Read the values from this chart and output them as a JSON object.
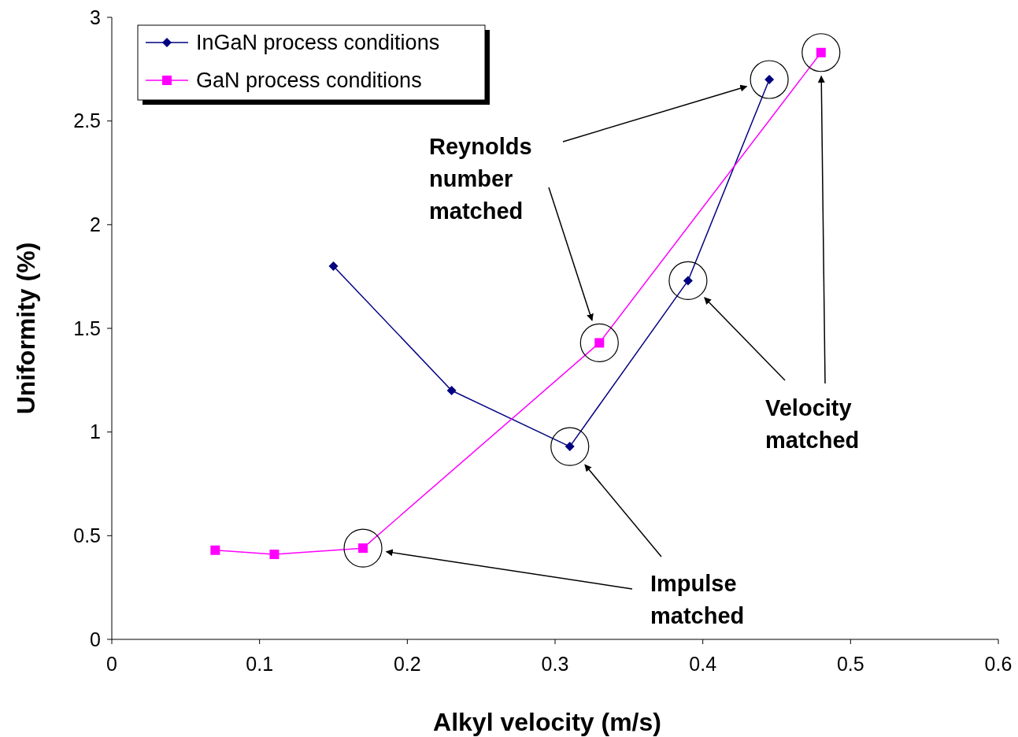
{
  "chart_data": {
    "type": "line",
    "xlabel": "Alkyl velocity (m/s)",
    "ylabel": "Uniformity (%)",
    "xlim": [
      0,
      0.6
    ],
    "xticks": [
      0,
      0.1,
      0.2,
      0.3,
      0.4,
      0.5,
      0.6
    ],
    "ylim": [
      0,
      3
    ],
    "yticks": [
      0,
      0.5,
      1,
      1.5,
      2,
      2.5,
      3
    ],
    "grid": false,
    "legend": "top left",
    "line_style": "solid",
    "series": [
      {
        "name": "InGaN process conditions",
        "color": "#000080",
        "marker": "diamond",
        "x": [
          0.15,
          0.23,
          0.31,
          0.39,
          0.445
        ],
        "values": [
          1.8,
          1.2,
          0.93,
          1.73,
          2.7
        ]
      },
      {
        "name": "GaN process conditions",
        "color": "#ff00ff",
        "marker": "square",
        "x": [
          0.07,
          0.11,
          0.17,
          0.33,
          0.48
        ],
        "values": [
          0.43,
          0.41,
          0.44,
          1.43,
          2.83
        ]
      }
    ],
    "annotations": [
      "Reynolds number matched",
      "Velocity matched",
      "Impulse matched"
    ]
  }
}
